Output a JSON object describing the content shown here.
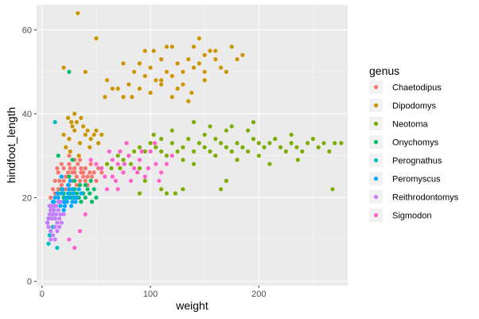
{
  "chart_data": {
    "type": "scatter",
    "xlabel": "weight",
    "ylabel": "hindfoot_length",
    "xlim": [
      -5,
      282
    ],
    "ylim": [
      -1,
      66
    ],
    "x_ticks": [
      0,
      100,
      200
    ],
    "x_tick_labels": [
      "0",
      "100",
      "200"
    ],
    "y_ticks": [
      0,
      20,
      40,
      60
    ],
    "y_tick_labels": [
      "0",
      "20",
      "40",
      "60"
    ],
    "grid": true,
    "background": "#ebebeb",
    "legend": {
      "title": "genus",
      "placement": "right"
    },
    "series": [
      {
        "name": "Chaetodipus",
        "color": "#F8766D",
        "points": [
          [
            8,
            20
          ],
          [
            10,
            22
          ],
          [
            12,
            24
          ],
          [
            15,
            26
          ],
          [
            18,
            25
          ],
          [
            20,
            27
          ],
          [
            22,
            25
          ],
          [
            25,
            28
          ],
          [
            28,
            26
          ],
          [
            30,
            27
          ],
          [
            32,
            25
          ],
          [
            35,
            24
          ],
          [
            38,
            26
          ],
          [
            40,
            27
          ],
          [
            42,
            25
          ],
          [
            45,
            28
          ],
          [
            48,
            26
          ],
          [
            50,
            24
          ],
          [
            15,
            22
          ],
          [
            18,
            23
          ],
          [
            22,
            22
          ],
          [
            25,
            23
          ],
          [
            28,
            24
          ],
          [
            30,
            26
          ],
          [
            33,
            28
          ],
          [
            36,
            27
          ],
          [
            40,
            24
          ],
          [
            44,
            26
          ],
          [
            12,
            21
          ],
          [
            20,
            24
          ],
          [
            25,
            30
          ],
          [
            30,
            29
          ],
          [
            35,
            29
          ],
          [
            14,
            27
          ],
          [
            18,
            28
          ],
          [
            26,
            27
          ],
          [
            32,
            23
          ],
          [
            38,
            25
          ],
          [
            42,
            23
          ],
          [
            55,
            26
          ],
          [
            16,
            24
          ],
          [
            24,
            26
          ],
          [
            28,
            22
          ],
          [
            36,
            26
          ],
          [
            46,
            25
          ],
          [
            52,
            27
          ]
        ]
      },
      {
        "name": "Dipodomys",
        "color": "#CD9600",
        "points": [
          [
            20,
            35
          ],
          [
            25,
            34
          ],
          [
            30,
            36
          ],
          [
            35,
            33
          ],
          [
            40,
            35
          ],
          [
            45,
            34
          ],
          [
            50,
            36
          ],
          [
            55,
            35
          ],
          [
            28,
            37
          ],
          [
            32,
            38
          ],
          [
            38,
            37
          ],
          [
            42,
            36
          ],
          [
            48,
            35
          ],
          [
            22,
            32
          ],
          [
            26,
            31
          ],
          [
            34,
            30
          ],
          [
            44,
            32
          ],
          [
            52,
            33
          ],
          [
            30,
            40
          ],
          [
            36,
            39
          ],
          [
            27,
            38
          ],
          [
            24,
            39
          ],
          [
            33,
            64
          ],
          [
            50,
            58
          ],
          [
            40,
            50
          ],
          [
            60,
            48
          ],
          [
            70,
            46
          ],
          [
            75,
            44
          ],
          [
            80,
            47
          ],
          [
            85,
            50
          ],
          [
            90,
            52
          ],
          [
            95,
            49
          ],
          [
            100,
            51
          ],
          [
            105,
            48
          ],
          [
            110,
            47
          ],
          [
            115,
            50
          ],
          [
            120,
            49
          ],
          [
            125,
            52
          ],
          [
            130,
            50
          ],
          [
            135,
            53
          ],
          [
            140,
            51
          ],
          [
            145,
            52
          ],
          [
            150,
            54
          ],
          [
            155,
            55
          ],
          [
            160,
            53
          ],
          [
            165,
            51
          ],
          [
            170,
            50
          ],
          [
            175,
            56
          ],
          [
            180,
            53
          ],
          [
            185,
            54
          ],
          [
            90,
            46
          ],
          [
            100,
            45
          ],
          [
            110,
            48
          ],
          [
            95,
            55
          ],
          [
            130,
            47
          ],
          [
            120,
            44
          ],
          [
            65,
            46
          ],
          [
            58,
            44
          ],
          [
            110,
            53
          ],
          [
            125,
            46
          ],
          [
            150,
            48
          ],
          [
            138,
            45
          ],
          [
            83,
            44
          ],
          [
            103,
            55
          ],
          [
            115,
            56
          ],
          [
            140,
            56
          ],
          [
            160,
            55
          ],
          [
            145,
            58
          ],
          [
            135,
            43
          ],
          [
            120,
            56
          ],
          [
            20,
            51
          ],
          [
            75,
            52
          ],
          [
            150,
            50
          ]
        ]
      },
      {
        "name": "Neotoma",
        "color": "#7CAE00",
        "points": [
          [
            60,
            28
          ],
          [
            70,
            30
          ],
          [
            75,
            29
          ],
          [
            80,
            30
          ],
          [
            85,
            31
          ],
          [
            90,
            32
          ],
          [
            95,
            31
          ],
          [
            100,
            33
          ],
          [
            105,
            32
          ],
          [
            110,
            31
          ],
          [
            115,
            30
          ],
          [
            120,
            33
          ],
          [
            125,
            31
          ],
          [
            130,
            32
          ],
          [
            135,
            34
          ],
          [
            140,
            31
          ],
          [
            145,
            33
          ],
          [
            150,
            32
          ],
          [
            155,
            31
          ],
          [
            160,
            34
          ],
          [
            165,
            33
          ],
          [
            170,
            32
          ],
          [
            175,
            31
          ],
          [
            180,
            33
          ],
          [
            185,
            32
          ],
          [
            190,
            31
          ],
          [
            195,
            34
          ],
          [
            200,
            33
          ],
          [
            205,
            32
          ],
          [
            210,
            33
          ],
          [
            215,
            34
          ],
          [
            220,
            32
          ],
          [
            225,
            31
          ],
          [
            230,
            33
          ],
          [
            235,
            32
          ],
          [
            240,
            31
          ],
          [
            245,
            33
          ],
          [
            250,
            34
          ],
          [
            255,
            32
          ],
          [
            260,
            33
          ],
          [
            265,
            31
          ],
          [
            270,
            33
          ],
          [
            276,
            33
          ],
          [
            103,
            35
          ],
          [
            110,
            34
          ],
          [
            120,
            36
          ],
          [
            130,
            29
          ],
          [
            140,
            28
          ],
          [
            150,
            35
          ],
          [
            160,
            30
          ],
          [
            170,
            36
          ],
          [
            180,
            29
          ],
          [
            190,
            36
          ],
          [
            200,
            30
          ],
          [
            175,
            37
          ],
          [
            195,
            38
          ],
          [
            155,
            37
          ],
          [
            140,
            38
          ],
          [
            90,
            27
          ],
          [
            95,
            24
          ],
          [
            110,
            22
          ],
          [
            115,
            21
          ],
          [
            123,
            21
          ],
          [
            90,
            21
          ],
          [
            130,
            22
          ],
          [
            170,
            24
          ],
          [
            165,
            22
          ],
          [
            180,
            29
          ],
          [
            210,
            28
          ],
          [
            230,
            35
          ],
          [
            268,
            22
          ],
          [
            236,
            29
          ],
          [
            82,
            28
          ],
          [
            64,
            27
          ],
          [
            72,
            27
          ]
        ]
      },
      {
        "name": "Onychomys",
        "color": "#00BE67",
        "points": [
          [
            15,
            21
          ],
          [
            18,
            22
          ],
          [
            20,
            20
          ],
          [
            22,
            19
          ],
          [
            24,
            20
          ],
          [
            26,
            21
          ],
          [
            28,
            20
          ],
          [
            30,
            22
          ],
          [
            32,
            21
          ],
          [
            34,
            20
          ],
          [
            36,
            19
          ],
          [
            38,
            21
          ],
          [
            40,
            20
          ],
          [
            42,
            22
          ],
          [
            44,
            21
          ],
          [
            46,
            19
          ],
          [
            48,
            22
          ],
          [
            50,
            20
          ],
          [
            25,
            25
          ],
          [
            30,
            24
          ],
          [
            35,
            23
          ],
          [
            40,
            23
          ],
          [
            45,
            24
          ],
          [
            25,
            50
          ],
          [
            15,
            30
          ],
          [
            28,
            29
          ],
          [
            20,
            21
          ]
        ]
      },
      {
        "name": "Perognathus",
        "color": "#00BFC4",
        "points": [
          [
            5,
            14
          ],
          [
            6,
            15
          ],
          [
            7,
            16
          ],
          [
            8,
            17
          ],
          [
            9,
            15
          ],
          [
            10,
            16
          ],
          [
            11,
            17
          ],
          [
            12,
            15
          ],
          [
            8,
            12
          ],
          [
            10,
            13
          ],
          [
            7,
            11
          ],
          [
            6,
            9
          ],
          [
            9,
            18
          ],
          [
            11,
            19
          ],
          [
            12,
            38
          ],
          [
            14,
            8
          ]
        ]
      },
      {
        "name": "Peromyscus",
        "color": "#00A9FF",
        "points": [
          [
            15,
            20
          ],
          [
            18,
            21
          ],
          [
            20,
            19
          ],
          [
            22,
            20
          ],
          [
            24,
            21
          ],
          [
            26,
            20
          ],
          [
            28,
            19
          ],
          [
            30,
            20
          ],
          [
            17,
            18
          ],
          [
            21,
            18
          ],
          [
            25,
            22
          ],
          [
            29,
            21
          ],
          [
            32,
            20
          ],
          [
            34,
            22
          ],
          [
            19,
            22
          ],
          [
            23,
            19
          ],
          [
            27,
            18
          ],
          [
            31,
            19
          ],
          [
            16,
            19
          ],
          [
            20,
            17
          ],
          [
            24,
            23
          ],
          [
            28,
            22
          ],
          [
            12,
            20
          ],
          [
            14,
            21
          ],
          [
            36,
            21
          ],
          [
            26,
            24
          ],
          [
            18,
            25
          ],
          [
            10,
            19
          ]
        ]
      },
      {
        "name": "Reithrodontomys",
        "color": "#C77CFF",
        "points": [
          [
            5,
            14
          ],
          [
            6,
            15
          ],
          [
            7,
            16
          ],
          [
            8,
            17
          ],
          [
            9,
            15
          ],
          [
            10,
            16
          ],
          [
            11,
            17
          ],
          [
            12,
            15
          ],
          [
            13,
            16
          ],
          [
            14,
            14
          ],
          [
            15,
            17
          ],
          [
            16,
            15
          ],
          [
            17,
            16
          ],
          [
            6,
            13
          ],
          [
            8,
            12
          ],
          [
            10,
            11
          ],
          [
            12,
            13
          ],
          [
            14,
            12
          ],
          [
            7,
            18
          ],
          [
            9,
            18
          ],
          [
            11,
            18
          ],
          [
            13,
            18
          ],
          [
            15,
            19
          ],
          [
            17,
            19
          ],
          [
            16,
            13
          ],
          [
            18,
            14
          ],
          [
            12,
            10
          ],
          [
            8,
            10
          ],
          [
            20,
            16
          ]
        ]
      },
      {
        "name": "Sigmodon",
        "color": "#FF61CC",
        "points": [
          [
            60,
            22
          ],
          [
            65,
            25
          ],
          [
            70,
            28
          ],
          [
            75,
            26
          ],
          [
            80,
            30
          ],
          [
            85,
            27
          ],
          [
            90,
            29
          ],
          [
            95,
            25
          ],
          [
            100,
            31
          ],
          [
            105,
            28
          ],
          [
            110,
            26
          ],
          [
            65,
            29
          ],
          [
            55,
            27
          ],
          [
            58,
            25
          ],
          [
            72,
            31
          ],
          [
            68,
            24
          ],
          [
            76,
            28
          ],
          [
            82,
            24
          ],
          [
            88,
            26
          ],
          [
            92,
            31
          ],
          [
            98,
            27
          ],
          [
            104,
            33
          ],
          [
            115,
            28
          ],
          [
            120,
            30
          ],
          [
            62,
            31
          ],
          [
            50,
            28
          ],
          [
            45,
            29
          ],
          [
            78,
            33
          ],
          [
            108,
            24
          ],
          [
            30,
            8
          ],
          [
            35,
            12
          ],
          [
            25,
            10
          ],
          [
            40,
            16
          ],
          [
            70,
            22
          ]
        ]
      }
    ]
  }
}
